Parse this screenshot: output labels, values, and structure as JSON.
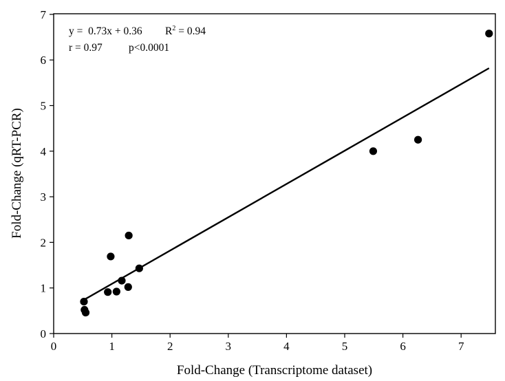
{
  "chart_data": {
    "type": "scatter",
    "title": "",
    "xlabel": "Fold-Change (Transcriptome dataset)",
    "ylabel": "Fold-Change (qRT-PCR)",
    "xlim": [
      0,
      7.6
    ],
    "ylim": [
      0,
      7
    ],
    "xticks": [
      0,
      1,
      2,
      3,
      4,
      5,
      6,
      7
    ],
    "yticks": [
      0,
      1,
      2,
      3,
      4,
      5,
      6,
      7
    ],
    "grid": false,
    "points": [
      {
        "x": 0.52,
        "y": 0.7
      },
      {
        "x": 0.53,
        "y": 0.52
      },
      {
        "x": 0.55,
        "y": 0.46
      },
      {
        "x": 0.93,
        "y": 0.91
      },
      {
        "x": 0.98,
        "y": 1.69
      },
      {
        "x": 1.08,
        "y": 0.92
      },
      {
        "x": 1.17,
        "y": 1.16
      },
      {
        "x": 1.28,
        "y": 1.02
      },
      {
        "x": 1.29,
        "y": 2.15
      },
      {
        "x": 1.47,
        "y": 1.43
      },
      {
        "x": 5.49,
        "y": 4.0
      },
      {
        "x": 6.26,
        "y": 4.25
      },
      {
        "x": 7.48,
        "y": 6.58
      }
    ],
    "regression": {
      "slope": 0.73,
      "intercept": 0.36,
      "x_range": [
        0.52,
        7.48
      ]
    },
    "annotations": {
      "equation": "y =  0.73x + 0.36",
      "r2_prefix": "R",
      "r2_sup": "2",
      "r2_value": " = 0.94",
      "r_text": "r = 0.97",
      "p_text": "p<0.0001"
    },
    "colors": {
      "points": "#000000",
      "line": "#000000",
      "axes": "#000000"
    }
  }
}
